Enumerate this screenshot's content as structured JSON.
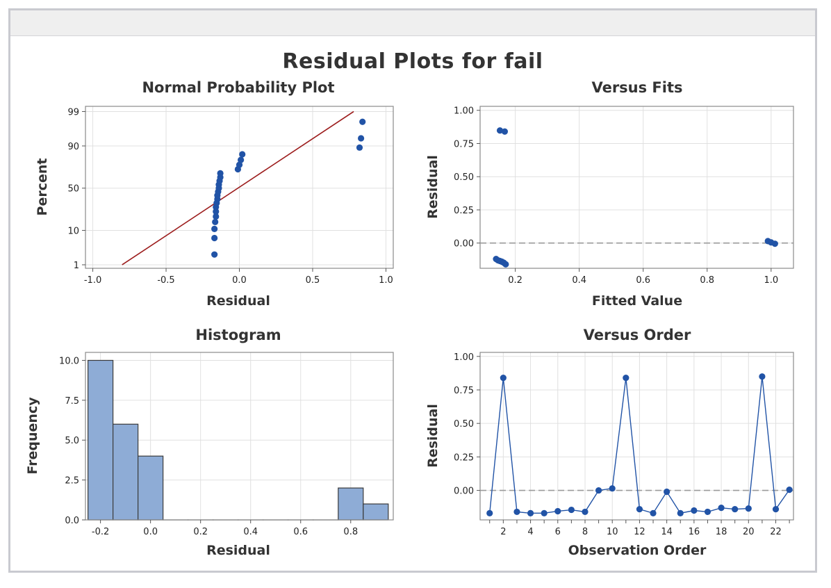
{
  "window": {
    "main_title": "Residual Plots for fail"
  },
  "colors": {
    "points": "#2153a6",
    "fit_line": "#9c1c1c",
    "bars": "#8eacd6",
    "bar_edge": "#3a3a3a",
    "ref_line": "#9a9a9a"
  },
  "chart_data": [
    {
      "type": "scatter",
      "title": "Normal Probability Plot",
      "xlabel": "Residual",
      "ylabel": "Percent",
      "xlim": [
        -1.05,
        1.05
      ],
      "x_ticks": [
        -1.0,
        -0.5,
        0.0,
        0.5,
        1.0
      ],
      "x_tick_labels": [
        "-1.0",
        "-0.5",
        "0.0",
        "0.5",
        "1.0"
      ],
      "y_ticks": [
        1,
        10,
        50,
        90,
        99
      ],
      "y_tick_labels": [
        "1",
        "10",
        "50",
        "90",
        "99"
      ],
      "y_scale": "normal-probability",
      "fit_line": {
        "x": [
          -0.8,
          0.78
        ],
        "percent": [
          1,
          99
        ]
      },
      "points": [
        {
          "x": -0.17,
          "percent": 2.2
        },
        {
          "x": -0.17,
          "percent": 6.5
        },
        {
          "x": -0.17,
          "percent": 10.8
        },
        {
          "x": -0.165,
          "percent": 15.2
        },
        {
          "x": -0.16,
          "percent": 19.5
        },
        {
          "x": -0.16,
          "percent": 23.9
        },
        {
          "x": -0.16,
          "percent": 28.3
        },
        {
          "x": -0.155,
          "percent": 32.6
        },
        {
          "x": -0.15,
          "percent": 37.0
        },
        {
          "x": -0.15,
          "percent": 41.3
        },
        {
          "x": -0.145,
          "percent": 45.7
        },
        {
          "x": -0.14,
          "percent": 50.0
        },
        {
          "x": -0.14,
          "percent": 54.3
        },
        {
          "x": -0.135,
          "percent": 58.7
        },
        {
          "x": -0.13,
          "percent": 63.0
        },
        {
          "x": -0.13,
          "percent": 67.4
        },
        {
          "x": -0.01,
          "percent": 71.7
        },
        {
          "x": 0.0,
          "percent": 76.1
        },
        {
          "x": 0.01,
          "percent": 80.4
        },
        {
          "x": 0.02,
          "percent": 84.8
        },
        {
          "x": 0.82,
          "percent": 89.1
        },
        {
          "x": 0.83,
          "percent": 93.5
        },
        {
          "x": 0.84,
          "percent": 97.8
        }
      ]
    },
    {
      "type": "scatter",
      "title": "Versus Fits",
      "xlabel": "Fitted Value",
      "ylabel": "Residual",
      "xlim": [
        0.09,
        1.07
      ],
      "ylim": [
        -0.19,
        1.03
      ],
      "x_ticks": [
        0.2,
        0.4,
        0.6,
        0.8,
        1.0
      ],
      "x_tick_labels": [
        "0.2",
        "0.4",
        "0.6",
        "0.8",
        "1.0"
      ],
      "y_ticks": [
        0.0,
        0.25,
        0.5,
        0.75,
        1.0
      ],
      "y_tick_labels": [
        "0.00",
        "0.25",
        "0.50",
        "0.75",
        "1.00"
      ],
      "reference_line": 0.0,
      "points": [
        {
          "x": 0.152,
          "y": 0.848
        },
        {
          "x": 0.167,
          "y": 0.84
        },
        {
          "x": 0.14,
          "y": -0.12
        },
        {
          "x": 0.146,
          "y": -0.13
        },
        {
          "x": 0.152,
          "y": -0.135
        },
        {
          "x": 0.158,
          "y": -0.14
        },
        {
          "x": 0.164,
          "y": -0.148
        },
        {
          "x": 0.17,
          "y": -0.16
        },
        {
          "x": 0.99,
          "y": 0.015
        },
        {
          "x": 1.0,
          "y": 0.005
        },
        {
          "x": 1.012,
          "y": -0.005
        }
      ]
    },
    {
      "type": "bar",
      "title": "Histogram",
      "xlabel": "Residual",
      "ylabel": "Frequency",
      "xlim": [
        -0.26,
        0.97
      ],
      "ylim": [
        0,
        10.5
      ],
      "x_ticks": [
        -0.2,
        0.0,
        0.2,
        0.4,
        0.6,
        0.8
      ],
      "x_tick_labels": [
        "-0.2",
        "0.0",
        "0.2",
        "0.4",
        "0.6",
        "0.8"
      ],
      "y_ticks": [
        0,
        2.5,
        5,
        7.5,
        10
      ],
      "y_tick_labels": [
        "0.0",
        "2.5",
        "5.0",
        "7.5",
        "10.0"
      ],
      "bin_width": 0.1,
      "bin_centers": [
        -0.2,
        -0.1,
        0.0,
        0.1,
        0.2,
        0.3,
        0.4,
        0.5,
        0.6,
        0.7,
        0.8,
        0.9
      ],
      "values": [
        10,
        6,
        4,
        0,
        0,
        0,
        0,
        0,
        0,
        0,
        2,
        1
      ]
    },
    {
      "type": "line",
      "title": "Versus Order",
      "xlabel": "Observation Order",
      "ylabel": "Residual",
      "xlim": [
        0.3,
        23.3
      ],
      "ylim": [
        -0.22,
        1.03
      ],
      "x_ticks": [
        2,
        4,
        6,
        8,
        10,
        12,
        14,
        16,
        18,
        20,
        22
      ],
      "x_tick_labels": [
        "2",
        "4",
        "6",
        "8",
        "10",
        "12",
        "14",
        "16",
        "18",
        "20",
        "22"
      ],
      "y_ticks": [
        0.0,
        0.25,
        0.5,
        0.75,
        1.0
      ],
      "y_tick_labels": [
        "0.00",
        "0.25",
        "0.50",
        "0.75",
        "1.00"
      ],
      "reference_line": 0.0,
      "x": [
        1,
        2,
        3,
        4,
        5,
        6,
        7,
        8,
        9,
        10,
        11,
        12,
        13,
        14,
        15,
        16,
        17,
        18,
        19,
        20,
        21,
        22,
        23
      ],
      "values": [
        -0.17,
        0.84,
        -0.16,
        -0.17,
        -0.17,
        -0.155,
        -0.145,
        -0.16,
        0.0,
        0.015,
        0.84,
        -0.14,
        -0.17,
        -0.01,
        -0.17,
        -0.15,
        -0.16,
        -0.13,
        -0.14,
        -0.135,
        0.85,
        -0.14,
        0.005
      ]
    }
  ]
}
